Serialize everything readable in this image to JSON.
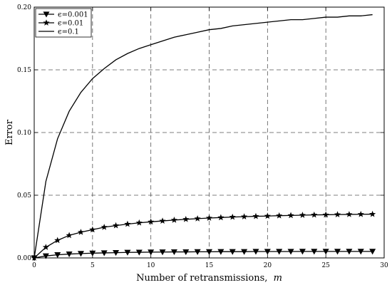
{
  "chart_data": {
    "type": "line",
    "xlabel": "Number of retransmissions,",
    "xlabel_var": "m",
    "ylabel": "Error",
    "xlim": [
      0,
      30
    ],
    "ylim": [
      0,
      0.2
    ],
    "xticks": [
      0,
      5,
      10,
      15,
      20,
      25,
      30
    ],
    "yticks": [
      0.0,
      0.05,
      0.1,
      0.15,
      0.2
    ],
    "xtick_labels": [
      "0",
      "5",
      "10",
      "15",
      "20",
      "25",
      "30"
    ],
    "ytick_labels": [
      "0.00",
      "0.05",
      "0.10",
      "0.15",
      "0.20"
    ],
    "grid": true,
    "grid_style": "dashed",
    "legend_position": "top-left",
    "legend_entries": [
      "ϵ=0.001",
      "ϵ=0.01",
      "ϵ=0.1"
    ],
    "x": [
      0,
      1,
      2,
      3,
      4,
      5,
      6,
      7,
      8,
      9,
      10,
      11,
      12,
      13,
      14,
      15,
      16,
      17,
      18,
      19,
      20,
      21,
      22,
      23,
      24,
      25,
      26,
      27,
      28,
      29
    ],
    "series": [
      {
        "name": "ϵ=0.001",
        "marker": "triangle-down",
        "values": [
          0,
          0.0016,
          0.0025,
          0.0031,
          0.0035,
          0.0038,
          0.004,
          0.0042,
          0.0044,
          0.0045,
          0.0046,
          0.0047,
          0.0048,
          0.0048,
          0.0049,
          0.0049,
          0.005,
          0.005,
          0.005,
          0.0051,
          0.0051,
          0.0051,
          0.0051,
          0.0052,
          0.0052,
          0.0052,
          0.0052,
          0.0052,
          0.0052,
          0.0052
        ]
      },
      {
        "name": "ϵ=0.01",
        "marker": "star",
        "values": [
          0,
          0.0085,
          0.014,
          0.018,
          0.0205,
          0.0225,
          0.0245,
          0.0258,
          0.027,
          0.028,
          0.0288,
          0.0295,
          0.0302,
          0.0308,
          0.0313,
          0.0318,
          0.0322,
          0.0326,
          0.0329,
          0.0332,
          0.0334,
          0.0337,
          0.0339,
          0.0341,
          0.0343,
          0.0344,
          0.0346,
          0.0347,
          0.0348,
          0.0349
        ]
      },
      {
        "name": "ϵ=0.1",
        "marker": "none",
        "values": [
          0,
          0.061,
          0.095,
          0.117,
          0.132,
          0.143,
          0.151,
          0.158,
          0.163,
          0.167,
          0.17,
          0.173,
          0.176,
          0.178,
          0.18,
          0.182,
          0.183,
          0.185,
          0.186,
          0.187,
          0.188,
          0.189,
          0.19,
          0.19,
          0.191,
          0.192,
          0.192,
          0.193,
          0.193,
          0.194
        ]
      }
    ]
  }
}
